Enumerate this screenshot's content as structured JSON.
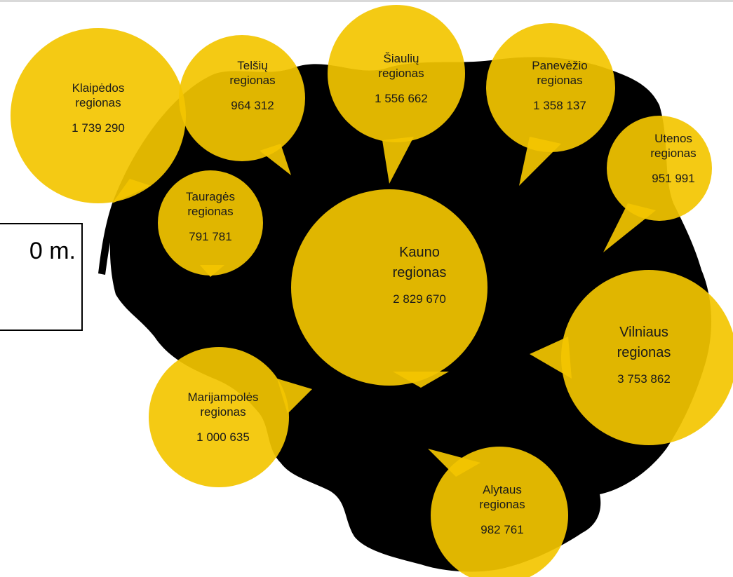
{
  "title_fragment": "0 m.",
  "colors": {
    "country": "#000000",
    "bubble": "#f3c600",
    "bubble_opacity": 0.92,
    "text": "#1a1a1a"
  },
  "regions": [
    {
      "id": "klaipedos",
      "name_line1": "Klaipėdos",
      "name_line2": "regionas",
      "value": "1 739 290"
    },
    {
      "id": "telsiu",
      "name_line1": "Telšių",
      "name_line2": "regionas",
      "value": "964 312"
    },
    {
      "id": "siauliu",
      "name_line1": "Šiaulių",
      "name_line2": "regionas",
      "value": "1 556 662"
    },
    {
      "id": "panevezio",
      "name_line1": "Panevėžio",
      "name_line2": "regionas",
      "value": "1 358 137"
    },
    {
      "id": "utenos",
      "name_line1": "Utenos",
      "name_line2": "regionas",
      "value": "951 991"
    },
    {
      "id": "taurages",
      "name_line1": "Tauragės",
      "name_line2": "regionas",
      "value": "791 781"
    },
    {
      "id": "kauno",
      "name_line1": "Kauno",
      "name_line2": "regionas",
      "value": "2 829 670"
    },
    {
      "id": "vilniaus",
      "name_line1": "Vilniaus",
      "name_line2": "regionas",
      "value": "3 753 862"
    },
    {
      "id": "marijampoles",
      "name_line1": "Marijampolės",
      "name_line2": "regionas",
      "value": "1 000 635"
    },
    {
      "id": "alytaus",
      "name_line1": "Alytaus",
      "name_line2": "regionas",
      "value": "982 761"
    }
  ]
}
